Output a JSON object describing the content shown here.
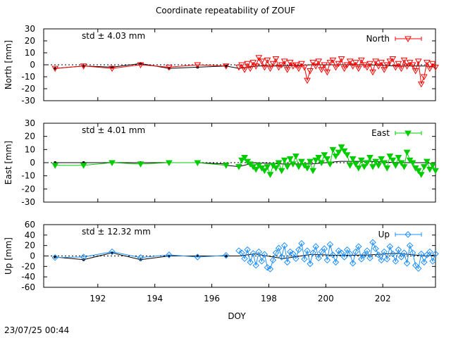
{
  "title": "Coordinate repeatability of ZOUF",
  "timestamp": "23/07/25 00:44",
  "chart_data": {
    "type": "line",
    "xlabel": "DOY",
    "xlim": [
      190.1,
      203.85
    ],
    "xticks": [
      192,
      194,
      196,
      198,
      200,
      202
    ],
    "panels": [
      {
        "name": "North",
        "ylabel": "North [mm]",
        "ylim": [
          -30,
          30
        ],
        "yticks": [
          -30,
          -20,
          -10,
          0,
          10,
          20,
          30
        ],
        "std_label": "std ± 4.03 mm",
        "color": "#ff0000",
        "marker": "triangle-down-open",
        "legend": "North",
        "daily_x": [
          190.5,
          191.5,
          192.5,
          193.5,
          194.5,
          195.5,
          196.5
        ],
        "daily_y": [
          -3,
          -1,
          -3,
          0,
          -2,
          0,
          -1
        ],
        "ref_x": [
          190.5,
          191.5,
          192.5,
          193.5,
          194.5,
          195.5,
          196.5
        ],
        "ref_y": [
          -3,
          -1,
          -2,
          1,
          -3,
          -2,
          -1
        ],
        "hourly_x": [
          196.95,
          197.05,
          197.15,
          197.25,
          197.35,
          197.45,
          197.55,
          197.65,
          197.75,
          197.85,
          197.95,
          198.05,
          198.15,
          198.25,
          198.35,
          198.45,
          198.55,
          198.65,
          198.75,
          198.85,
          198.95,
          199.05,
          199.15,
          199.25,
          199.35,
          199.45,
          199.55,
          199.65,
          199.75,
          199.85,
          199.95,
          200.05,
          200.15,
          200.25,
          200.35,
          200.45,
          200.55,
          200.65,
          200.75,
          200.85,
          200.95,
          201.05,
          201.15,
          201.25,
          201.35,
          201.45,
          201.55,
          201.65,
          201.75,
          201.85,
          201.95,
          202.05,
          202.15,
          202.25,
          202.35,
          202.45,
          202.55,
          202.65,
          202.75,
          202.85,
          202.95,
          203.05,
          203.15,
          203.25,
          203.35,
          203.45,
          203.55,
          203.65,
          203.75,
          203.85
        ],
        "hourly_y": [
          -2,
          0,
          -4,
          1,
          -3,
          2,
          -1,
          6,
          3,
          -2,
          4,
          -3,
          1,
          5,
          -2,
          0,
          3,
          -4,
          2,
          -1,
          0,
          -3,
          1,
          -2,
          -13,
          -5,
          2,
          -1,
          3,
          -4,
          0,
          -6,
          2,
          4,
          -2,
          1,
          5,
          -3,
          0,
          3,
          -1,
          2,
          -3,
          4,
          0,
          -2,
          1,
          -6,
          3,
          -1,
          2,
          -4,
          0,
          3,
          5,
          -2,
          1,
          -3,
          4,
          -1,
          2,
          0,
          -5,
          3,
          -16,
          -10,
          2,
          -3,
          1,
          -2
        ],
        "trend_x": [
          196.5,
          196.95,
          197.6,
          198.5,
          199.5,
          200.5,
          201.5,
          202.5,
          203.5,
          203.85
        ],
        "trend_y": [
          -1,
          -3,
          -1,
          -1,
          0,
          0,
          0,
          -1,
          -1,
          -2
        ]
      },
      {
        "name": "East",
        "ylabel": "East [mm]",
        "ylim": [
          -30,
          30
        ],
        "yticks": [
          -30,
          -20,
          -10,
          0,
          10,
          20,
          30
        ],
        "std_label": "std ± 4.01 mm",
        "color": "#00cc00",
        "marker": "triangle-down-filled",
        "legend": "East",
        "daily_x": [
          190.5,
          191.5,
          192.5,
          193.5,
          194.5,
          195.5,
          196.5
        ],
        "daily_y": [
          -2,
          -2,
          0,
          -1,
          0,
          0,
          -2
        ],
        "ref_x": [
          190.5,
          191.5,
          192.5,
          193.5,
          194.5,
          195.5,
          196.5
        ],
        "ref_y": [
          0,
          0,
          0,
          0,
          0,
          0,
          -1
        ],
        "hourly_x": [
          196.95,
          197.05,
          197.15,
          197.25,
          197.35,
          197.45,
          197.55,
          197.65,
          197.75,
          197.85,
          197.95,
          198.05,
          198.15,
          198.25,
          198.35,
          198.45,
          198.55,
          198.65,
          198.75,
          198.85,
          198.95,
          199.05,
          199.15,
          199.25,
          199.35,
          199.45,
          199.55,
          199.65,
          199.75,
          199.85,
          199.95,
          200.05,
          200.15,
          200.25,
          200.35,
          200.45,
          200.55,
          200.65,
          200.75,
          200.85,
          200.95,
          201.05,
          201.15,
          201.25,
          201.35,
          201.45,
          201.55,
          201.65,
          201.75,
          201.85,
          201.95,
          202.05,
          202.15,
          202.25,
          202.35,
          202.45,
          202.55,
          202.65,
          202.75,
          202.85,
          202.95,
          203.05,
          203.15,
          203.25,
          203.35,
          203.45,
          203.55,
          203.65,
          203.75,
          203.85
        ],
        "hourly_y": [
          -3,
          2,
          4,
          1,
          -1,
          -3,
          -5,
          -2,
          -4,
          -6,
          -3,
          -9,
          -2,
          -4,
          0,
          -6,
          2,
          -3,
          3,
          -1,
          5,
          -3,
          1,
          -2,
          -4,
          1,
          -6,
          2,
          4,
          0,
          6,
          3,
          -1,
          10,
          5,
          8,
          12,
          9,
          6,
          -2,
          3,
          -1,
          -4,
          2,
          -3,
          0,
          4,
          -3,
          1,
          -2,
          3,
          0,
          -4,
          5,
          2,
          -2,
          4,
          0,
          -3,
          8,
          2,
          0,
          -4,
          -6,
          -9,
          -3,
          1,
          -5,
          -2,
          -6
        ],
        "trend_x": [
          196.5,
          196.95,
          197.5,
          198.5,
          199.5,
          200.5,
          201.5,
          202.5,
          203.5,
          203.85
        ],
        "trend_y": [
          -2,
          -3,
          0,
          -1,
          -1,
          1,
          1,
          0,
          0,
          -1
        ]
      },
      {
        "name": "Up",
        "ylabel": "Up [mm]",
        "ylim": [
          -60,
          60
        ],
        "yticks": [
          -60,
          -40,
          -20,
          0,
          20,
          40,
          60
        ],
        "std_label": "std ± 12.32 mm",
        "color": "#1e90ff",
        "marker": "diamond-open",
        "legend": "Up",
        "daily_x": [
          190.5,
          191.5,
          192.5,
          193.5,
          194.5,
          195.5,
          196.5
        ],
        "daily_y": [
          -3,
          -2,
          8,
          -3,
          2,
          -2,
          1
        ],
        "ref_x": [
          190.5,
          191.5,
          192.5,
          193.5,
          194.5,
          195.5,
          196.5
        ],
        "ref_y": [
          -2,
          -7,
          6,
          -7,
          0,
          0,
          0
        ],
        "hourly_x": [
          196.95,
          197.05,
          197.15,
          197.25,
          197.35,
          197.45,
          197.55,
          197.65,
          197.75,
          197.85,
          197.95,
          198.05,
          198.15,
          198.25,
          198.35,
          198.45,
          198.55,
          198.65,
          198.75,
          198.85,
          198.95,
          199.05,
          199.15,
          199.25,
          199.35,
          199.45,
          199.55,
          199.65,
          199.75,
          199.85,
          199.95,
          200.05,
          200.15,
          200.25,
          200.35,
          200.45,
          200.55,
          200.65,
          200.75,
          200.85,
          200.95,
          201.05,
          201.15,
          201.25,
          201.35,
          201.45,
          201.55,
          201.65,
          201.75,
          201.85,
          201.95,
          202.05,
          202.15,
          202.25,
          202.35,
          202.45,
          202.55,
          202.65,
          202.75,
          202.85,
          202.95,
          203.05,
          203.15,
          203.25,
          203.35,
          203.45,
          203.55,
          203.65,
          203.75,
          203.85
        ],
        "hourly_y": [
          10,
          6,
          -5,
          12,
          -12,
          5,
          -18,
          8,
          -10,
          3,
          -22,
          -25,
          -8,
          6,
          15,
          -2,
          20,
          -12,
          8,
          4,
          -5,
          12,
          24,
          -6,
          10,
          -15,
          6,
          18,
          -4,
          8,
          14,
          -8,
          22,
          2,
          -12,
          10,
          6,
          -2,
          12,
          4,
          -14,
          8,
          18,
          -6,
          2,
          10,
          -4,
          26,
          14,
          2,
          -8,
          8,
          -6,
          18,
          4,
          -10,
          12,
          -2,
          6,
          -14,
          20,
          6,
          -18,
          -24,
          4,
          -12,
          2,
          8,
          -10,
          4
        ],
        "trend_x": [
          196.5,
          196.95,
          197.5,
          198.5,
          199.5,
          200.5,
          201.5,
          202.5,
          203.5,
          203.85
        ],
        "trend_y": [
          0,
          0,
          4,
          -5,
          3,
          1,
          2,
          5,
          0,
          2
        ]
      }
    ]
  }
}
